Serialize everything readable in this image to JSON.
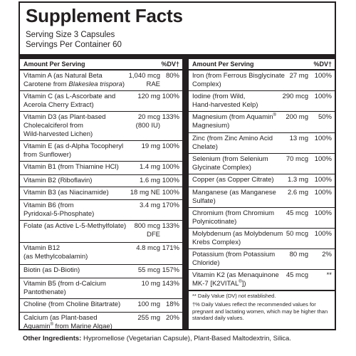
{
  "title": "Supplement Facts",
  "serving_size": "Serving Size 3 Capsules",
  "servings_per_container": "Servings Per Container 60",
  "header": {
    "amount_per_serving": "Amount Per Serving",
    "dv": "%DV†"
  },
  "left": [
    {
      "name": [
        "Vitamin A (as Natural Beta",
        "Carotene from Blakeslea trispora)"
      ],
      "amount": [
        "1,040 mcg",
        "RAE"
      ],
      "dv": "80%"
    },
    {
      "name": [
        "Vitamin C (as L-Ascorbate and",
        "Acerola Cherry Extract)"
      ],
      "amount": [
        "120 mg"
      ],
      "dv": "100%"
    },
    {
      "name": [
        "Vitamin D3 (as Plant-based",
        "Cholecalciferol from",
        "Wild-harvested Lichen)"
      ],
      "amount": [
        "20 mcg",
        "(800 IU)"
      ],
      "dv": "133%"
    },
    {
      "name": [
        "Vitamin E (as d-Alpha Tocopheryl",
        "from Sunflower)"
      ],
      "amount": [
        "19 mg"
      ],
      "dv": "100%"
    },
    {
      "name": [
        "Vitamin B1 (from Thiamine HCl)"
      ],
      "amount": [
        "1.4 mg"
      ],
      "dv": "100%"
    },
    {
      "name": [
        "Vitamin B2 (Riboflavin)"
      ],
      "amount": [
        "1.6 mg"
      ],
      "dv": "100%"
    },
    {
      "name": [
        "Vitamin B3 (as Niacinamide)"
      ],
      "amount": [
        "18 mg NE"
      ],
      "dv": "100%"
    },
    {
      "name": [
        "Vitamin B6 (from",
        "Pyridoxal-5-Phosphate)"
      ],
      "amount": [
        "3.4 mg"
      ],
      "dv": "170%"
    },
    {
      "name": [
        "Folate (as Active L-5-Methylfolate)"
      ],
      "amount": [
        "800 mcg",
        "DFE"
      ],
      "dv": "133%"
    },
    {
      "name": [
        "Vitamin B12",
        "(as Methylcobalamin)"
      ],
      "amount": [
        "4.8 mcg"
      ],
      "dv": "171%"
    },
    {
      "name": [
        "Biotin (as D-Biotin)"
      ],
      "amount": [
        "55 mcg"
      ],
      "dv": "157%"
    },
    {
      "name": [
        "Vitamin B5 (from d-Calcium",
        "Pantothenate)"
      ],
      "amount": [
        "10 mg"
      ],
      "dv": "143%"
    },
    {
      "name": [
        "Choline (from Choline Bitartrate)"
      ],
      "amount": [
        "100 mg"
      ],
      "dv": "18%"
    },
    {
      "name": [
        "Calcium (as Plant-based",
        "Aquamin® from Marine Algae)"
      ],
      "amount": [
        "255 mg"
      ],
      "dv": "20%"
    }
  ],
  "right": [
    {
      "name": [
        "Iron (from Ferrous Bisglycinate",
        "Complex)"
      ],
      "amount": [
        "27 mg"
      ],
      "dv": "100%"
    },
    {
      "name": [
        "Iodine (from Wild,",
        "Hand-harvested Kelp)"
      ],
      "amount": [
        "290 mcg"
      ],
      "dv": "100%"
    },
    {
      "name": [
        "Magnesium (from Aquamin®",
        "Magnesium)"
      ],
      "amount": [
        "200 mg"
      ],
      "dv": "50%"
    },
    {
      "name": [
        "Zinc (from Zinc Amino Acid",
        "Chelate)"
      ],
      "amount": [
        "13 mg"
      ],
      "dv": "100%"
    },
    {
      "name": [
        "Selenium (from Selenium",
        "Glycinate Complex)"
      ],
      "amount": [
        "70 mcg"
      ],
      "dv": "100%"
    },
    {
      "name": [
        "Copper (as Copper Citrate)"
      ],
      "amount": [
        "1.3 mg"
      ],
      "dv": "100%"
    },
    {
      "name": [
        "Manganese (as Manganese",
        "Sulfate)"
      ],
      "amount": [
        "2.6 mg"
      ],
      "dv": "100%"
    },
    {
      "name": [
        "Chromium (from Chromium",
        "Polynicotinate)"
      ],
      "amount": [
        "45 mcg"
      ],
      "dv": "100%"
    },
    {
      "name": [
        "Molybdenum (as Molybdenum",
        "Krebs Complex)"
      ],
      "amount": [
        "50 mcg"
      ],
      "dv": "100%"
    },
    {
      "name": [
        "Potassium (from Potassium",
        "Chloride)"
      ],
      "amount": [
        "80 mg"
      ],
      "dv": "2%"
    },
    {
      "name": [
        "Vitamin K2 (as Menaquinone",
        "MK-7 [K2VITAL®])"
      ],
      "amount": [
        "45 mcg"
      ],
      "dv": "**"
    }
  ],
  "footnotes": [
    "** Daily Value (DV) not established.",
    "†% Daily Values reflect the recommended values for pregnant and lactating women, which may be higher than standard daily values."
  ],
  "other_ingredients": {
    "label": "Other Ingredients:",
    "text": " Hypromellose (Vegetarian Capsule), Plant-Based Maltodextrin, Silica."
  }
}
